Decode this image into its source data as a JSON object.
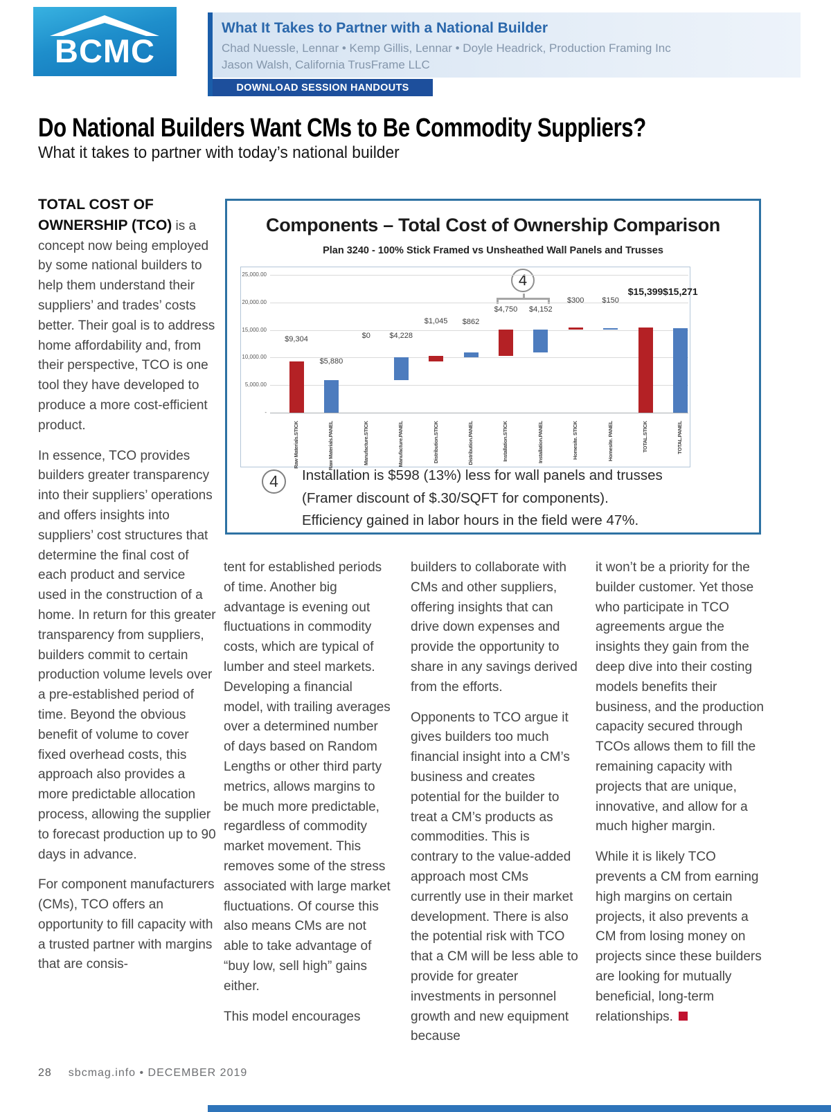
{
  "header": {
    "logo_text": "BCMC",
    "session_title": "What It Takes to Partner with a National Builder",
    "speakers_line1": "Chad Nuessle, Lennar • Kemp Gillis, Lennar • Doyle Headrick, Production Framing Inc",
    "speakers_line2": "Jason Walsh, California TrusFrame LLC",
    "download_button": "DOWNLOAD SESSION HANDOUTS"
  },
  "article": {
    "title": "Do National Builders Want CMs to Be Commodity Suppliers?",
    "subtitle": "What it takes to partner with today’s national builder",
    "col1": {
      "lead_bold": "TOTAL COST OF OWNERSHIP (TCO)",
      "p1_rest": " is a concept now being employed by some national builders to help them understand their suppliers’ and trades’ costs better. Their goal is to address home affordability and, from their perspective, TCO is one tool they have developed to produce a more cost-efficient product.",
      "p2": "In essence, TCO provides builders greater transparency into their suppliers’ operations and offers insights into suppliers’ cost structures that determine the final cost of each product and service used in the construction of a home. In return for this greater transparency from suppliers, builders commit to certain production volume levels over a pre-established period of time. Beyond the obvious benefit of volume to cover fixed overhead costs, this approach also provides a more predictable allocation process, allowing the supplier to forecast production up to 90 days in advance.",
      "p3": "For component manufacturers (CMs), TCO offers an opportunity to fill capacity with a trusted partner with margins that are consis-"
    },
    "col2": {
      "p1": "tent for established periods of time. Another big advantage is evening out fluctuations in commodity costs, which are typical of lumber and steel markets. Developing a financial model, with trailing averages over a determined number of days based on Random Lengths or other third party metrics, allows margins to be much more predictable, regardless of commodity market movement. This removes some of the stress associated with large market fluctuations. Of course this also means CMs are not able to take advantage of “buy low, sell high” gains either.",
      "p2": "This model encourages"
    },
    "col3": {
      "p1": "builders to collaborate with CMs and other suppliers, offering insights that can drive down expenses and provide the opportunity to share in any savings derived from the efforts.",
      "p2": "Opponents to TCO argue it gives builders too much financial insight into a CM’s business and creates potential for the builder to treat a CM’s products as commodities. This is contrary to the value-added approach most CMs currently use in their market development. There is also the potential risk with TCO that a CM will be less able to provide for greater investments in personnel growth and new equipment because"
    },
    "col4": {
      "p1": "it won’t be a priority for the builder customer. Yet those who participate in TCO agreements argue the insights they gain from the deep dive into their costing models benefits their business, and the production capacity secured through TCOs allows them to fill the remaining capacity with projects that are unique, innovative, and allow for a much higher margin.",
      "p2": "While it is likely TCO prevents a CM from earning high margins on certain projects, it also prevents a CM from losing money on projects since these builders are looking for mutually beneficial, long-term relationships."
    }
  },
  "chart_data": {
    "type": "bar",
    "subtype": "waterfall",
    "title": "Components – Total Cost of Ownership Comparison",
    "subtitle": "Plan 3240 - 100% Stick Framed vs Unsheathed Wall Panels and Trusses",
    "ylim": [
      0,
      25000
    ],
    "y_ticks": [
      "25,000.00",
      "20,000.00",
      "15,000.00",
      "10,000.00",
      "5,000.00",
      "-"
    ],
    "gridlines": true,
    "legend": "none",
    "colors": {
      "stick": "#b42125",
      "panel": "#4d7cbe"
    },
    "bars": [
      {
        "category": "Raw Materials.STICK",
        "series": "STICK",
        "base": 0,
        "value": 9304,
        "label": "$9,304",
        "label_y": 12400,
        "emphasis": false
      },
      {
        "category": "Raw Materials.PANEL",
        "series": "PANEL",
        "base": 0,
        "value": 5880,
        "label": "$5,880",
        "label_y": 8400,
        "emphasis": false
      },
      {
        "category": "Manufacture.STICK",
        "series": "STICK",
        "base": 9304,
        "value": 0,
        "label": "$0",
        "label_y": 13100,
        "emphasis": false
      },
      {
        "category": "Manufacture.PANEL",
        "series": "PANEL",
        "base": 5880,
        "value": 4228,
        "label": "$4,228",
        "label_y": 13100,
        "emphasis": false
      },
      {
        "category": "Distribution.STICK",
        "series": "STICK",
        "base": 9304,
        "value": 1045,
        "label": "$1,045",
        "label_y": 15700,
        "emphasis": false
      },
      {
        "category": "Distribution.PANEL",
        "series": "PANEL",
        "base": 10108,
        "value": 862,
        "label": "$862",
        "label_y": 15600,
        "emphasis": false
      },
      {
        "category": "Installation.STICK",
        "series": "STICK",
        "base": 10349,
        "value": 4750,
        "label": "$4,750",
        "label_y": 17800,
        "emphasis": false
      },
      {
        "category": "Installation.PANEL",
        "series": "PANEL",
        "base": 10970,
        "value": 4152,
        "label": "$4,152",
        "label_y": 17800,
        "emphasis": false
      },
      {
        "category": "Homesite. STICK",
        "series": "STICK",
        "base": 15099,
        "value": 300,
        "label": "$300",
        "label_y": 19500,
        "emphasis": false
      },
      {
        "category": "Homesite. PANEL",
        "series": "PANEL",
        "base": 15122,
        "value": 150,
        "label": "$150",
        "label_y": 19500,
        "emphasis": false
      },
      {
        "category": "TOTAL.STICK",
        "series": "STICK",
        "base": 0,
        "value": 15399,
        "label": "$15,399",
        "label_y": 21300,
        "emphasis": true
      },
      {
        "category": "TOTAL.PANEL",
        "series": "PANEL",
        "base": 0,
        "value": 15271,
        "label": "$15,271",
        "label_y": 21300,
        "emphasis": true
      }
    ],
    "callout": {
      "number": "4",
      "spans": [
        "Installation.STICK",
        "Installation.PANEL"
      ]
    }
  },
  "annotation": {
    "number": "4",
    "lines": [
      "Installation is $598 (13%) less for wall panels and trusses",
      "(Framer discount of $.30/SQFT for components).",
      "Efficiency gained in labor hours in the field were 47%."
    ]
  },
  "footer": {
    "page_number": "28",
    "issue": "sbcmag.info • DECEMBER 2019"
  }
}
